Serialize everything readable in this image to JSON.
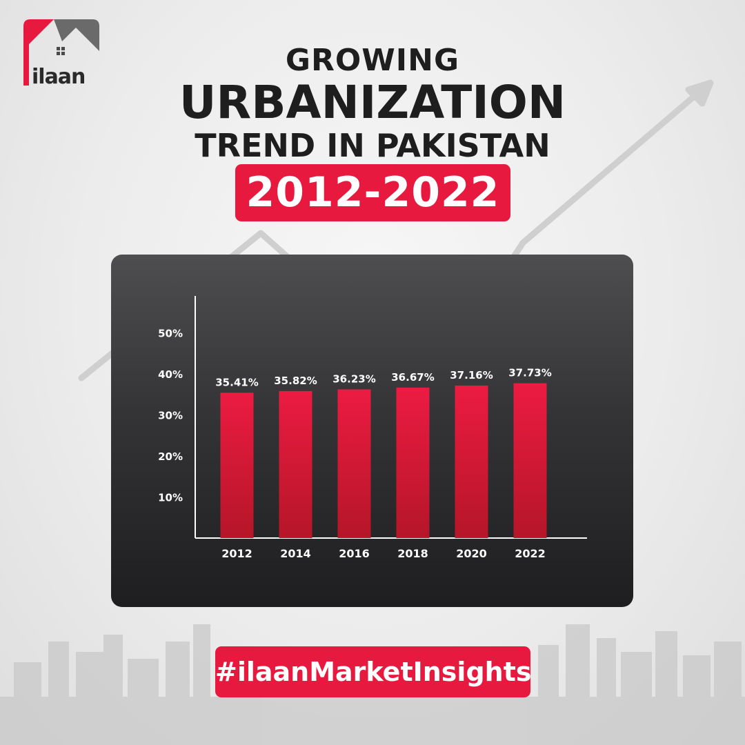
{
  "brand": {
    "name": "ilaan",
    "accent": "#e8193e",
    "dark": "#2a2a2a"
  },
  "header": {
    "line1": "GROWING",
    "line2": "URBANIZATION",
    "line3": "TREND IN PAKISTAN",
    "range": "2012-2022"
  },
  "hashtag": "#ilaanMarketInsights",
  "chart_data": {
    "type": "bar",
    "title": "",
    "xlabel": "",
    "ylabel": "",
    "categories": [
      "2012",
      "2014",
      "2016",
      "2018",
      "2020",
      "2022"
    ],
    "values": [
      35.41,
      35.82,
      36.23,
      36.67,
      37.16,
      37.73
    ],
    "value_labels": [
      "35.41%",
      "35.82%",
      "36.23%",
      "36.67%",
      "37.16%",
      "37.73%"
    ],
    "yticks": [
      10,
      20,
      30,
      40,
      50
    ],
    "ytick_labels": [
      "10%",
      "20%",
      "30%",
      "40%",
      "50%"
    ],
    "ylim": [
      0,
      59
    ],
    "grid": false,
    "colors": {
      "bar": "#e8193e",
      "bar_bottom": "#b51628",
      "panel": "#2e2e30",
      "text": "#ffffff"
    }
  }
}
